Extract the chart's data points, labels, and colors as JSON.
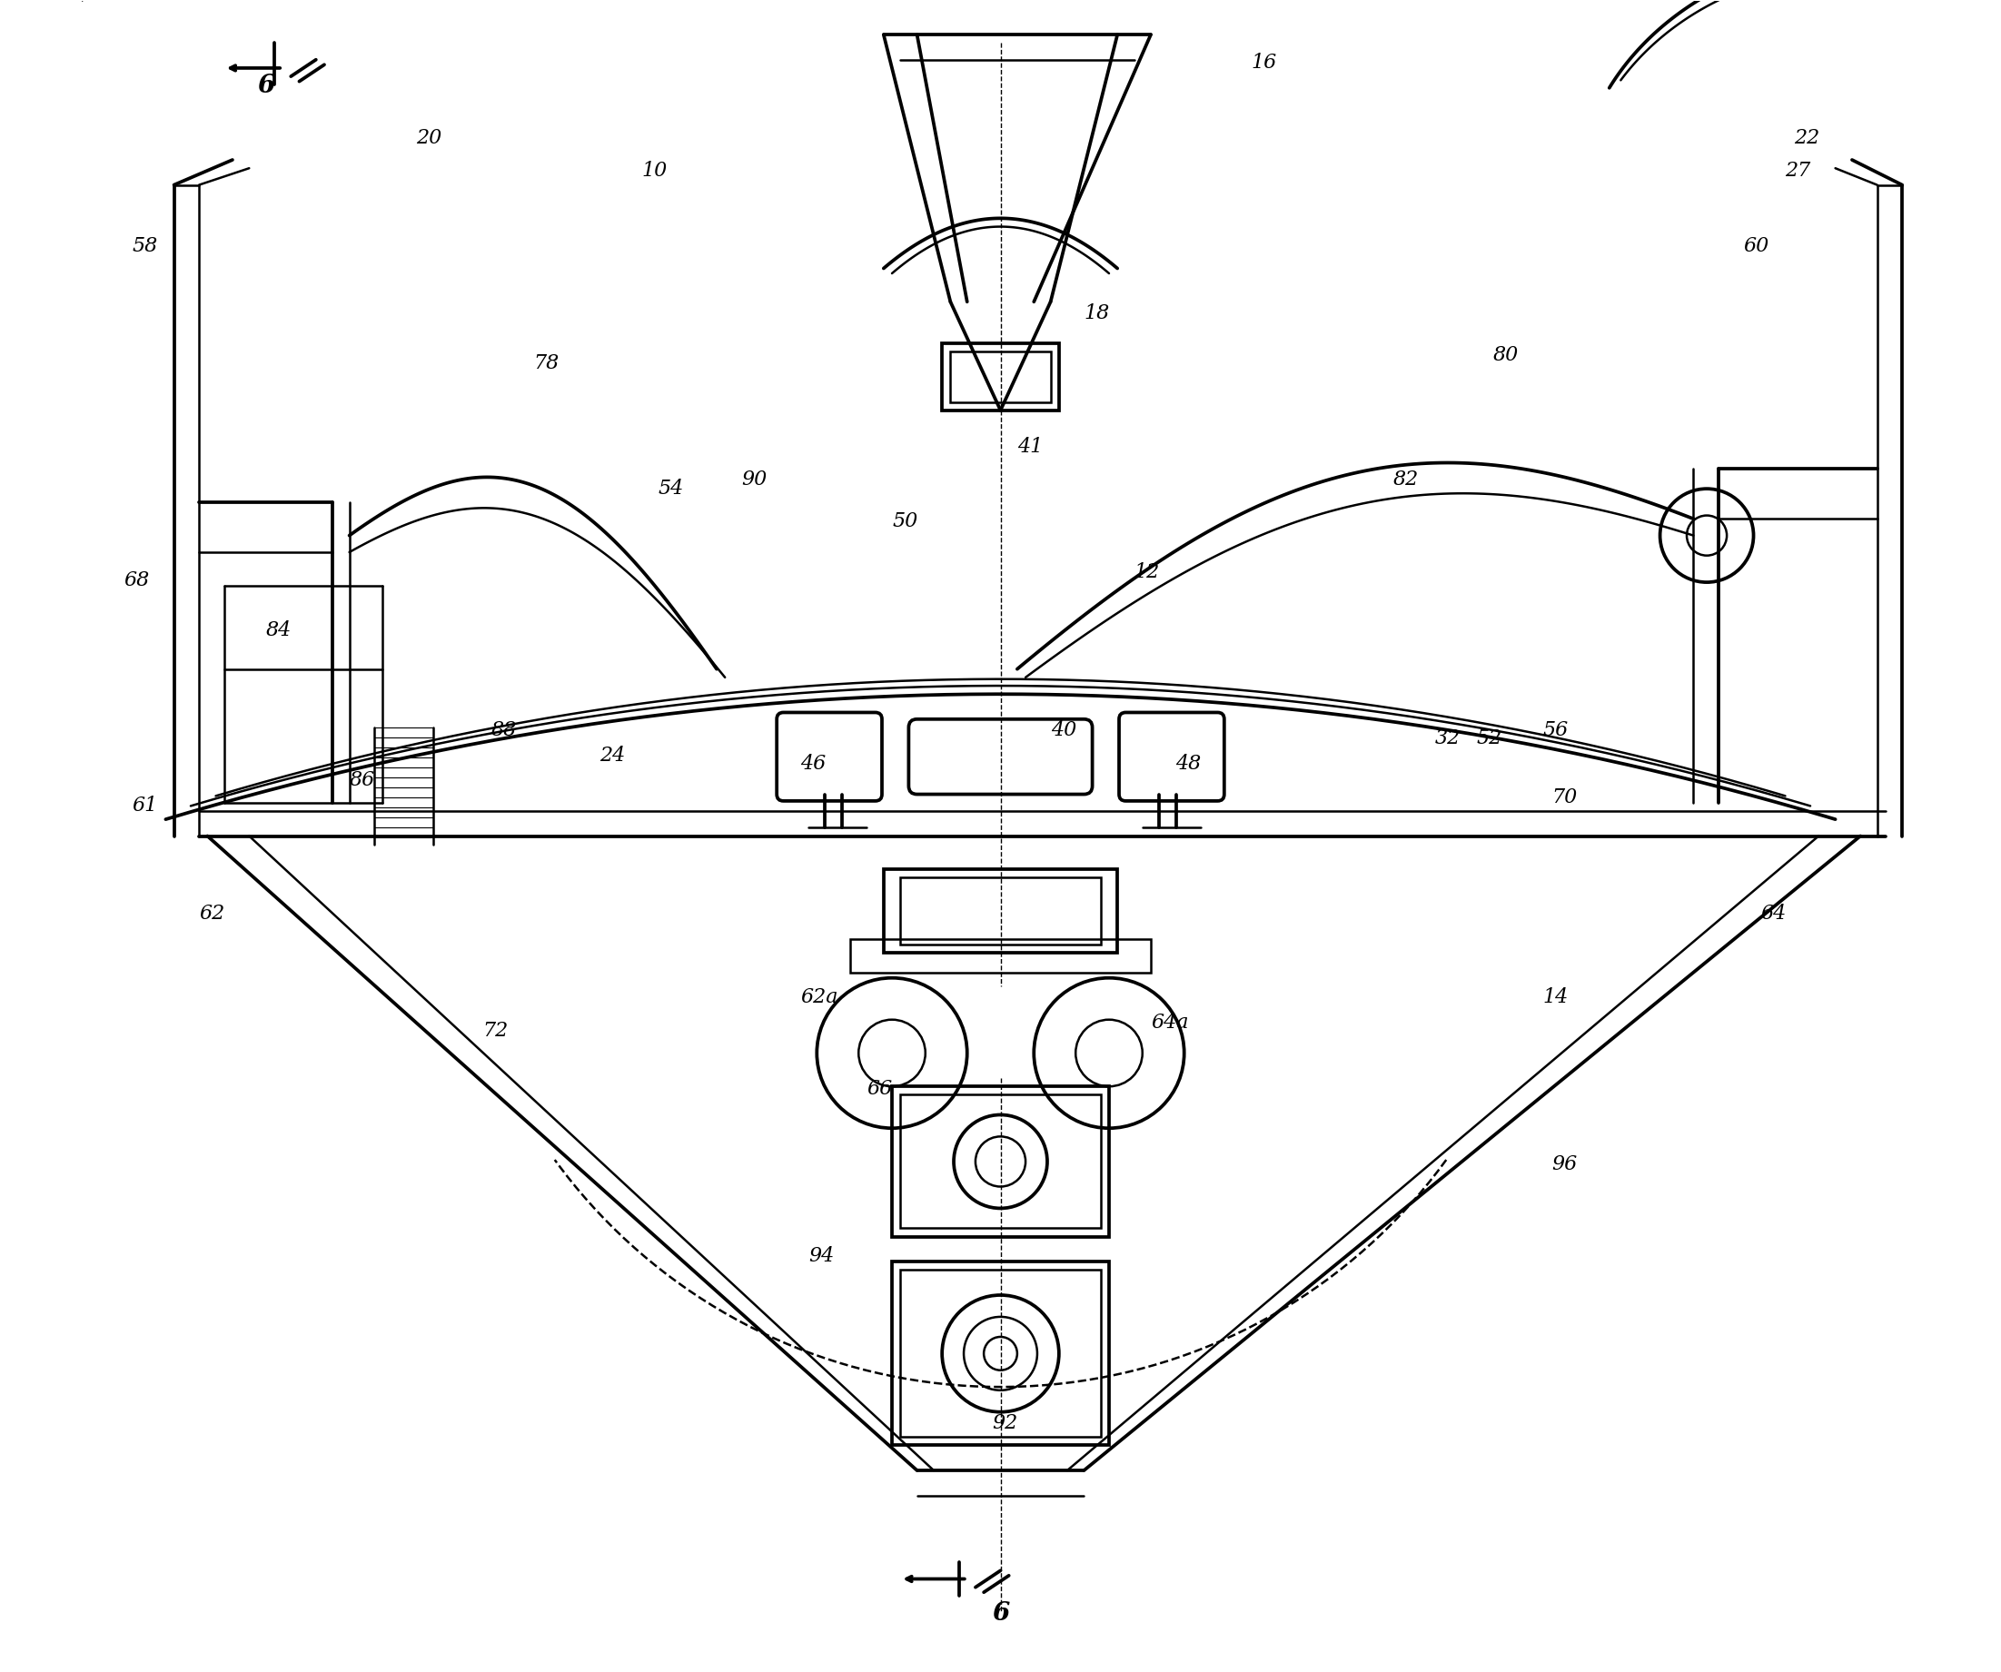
{
  "bg_color": "#ffffff",
  "line_color": "#000000",
  "line_width": 1.8,
  "fig_width": 22.03,
  "fig_height": 18.41,
  "label_fontsize": 16,
  "section_fontsize": 20,
  "labels": [
    [
      3.35,
      8.95,
      "10"
    ],
    [
      2.0,
      9.15,
      "20"
    ],
    [
      10.25,
      9.15,
      "22"
    ],
    [
      10.2,
      8.95,
      "27"
    ],
    [
      7.0,
      9.6,
      "16"
    ],
    [
      6.0,
      8.1,
      "18"
    ],
    [
      5.6,
      7.3,
      "41"
    ],
    [
      6.3,
      6.55,
      "12"
    ],
    [
      0.3,
      8.5,
      "58"
    ],
    [
      9.95,
      8.5,
      "60"
    ],
    [
      0.3,
      5.15,
      "61"
    ],
    [
      0.7,
      4.5,
      "62"
    ],
    [
      10.05,
      4.5,
      "64"
    ],
    [
      0.25,
      6.5,
      "68"
    ],
    [
      3.1,
      5.45,
      "24"
    ],
    [
      8.1,
      5.55,
      "32"
    ],
    [
      5.8,
      5.6,
      "40"
    ],
    [
      4.3,
      5.4,
      "46"
    ],
    [
      6.55,
      5.4,
      "48"
    ],
    [
      4.85,
      6.85,
      "50"
    ],
    [
      8.35,
      5.55,
      "52"
    ],
    [
      3.45,
      7.05,
      "54"
    ],
    [
      8.75,
      5.6,
      "56"
    ],
    [
      8.8,
      5.2,
      "70"
    ],
    [
      2.7,
      7.8,
      "78"
    ],
    [
      8.45,
      7.85,
      "80"
    ],
    [
      7.85,
      7.1,
      "82"
    ],
    [
      1.1,
      6.2,
      "84"
    ],
    [
      1.6,
      5.3,
      "86"
    ],
    [
      2.45,
      5.6,
      "88"
    ],
    [
      3.95,
      7.1,
      "90"
    ],
    [
      2.4,
      3.8,
      "72"
    ],
    [
      8.8,
      3.0,
      "96"
    ],
    [
      4.3,
      4.0,
      "62a"
    ],
    [
      6.4,
      3.85,
      "64a"
    ],
    [
      4.7,
      3.45,
      "66"
    ],
    [
      4.35,
      2.45,
      "94"
    ],
    [
      5.45,
      1.45,
      "92"
    ],
    [
      8.75,
      4.0,
      "14"
    ]
  ]
}
